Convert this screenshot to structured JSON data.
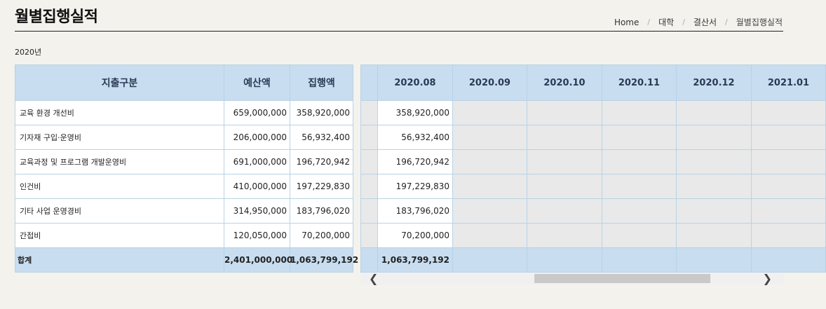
{
  "page": {
    "title": "월별집행실적",
    "breadcrumb": [
      "Home",
      "대학",
      "결산서",
      "월별집행실적"
    ],
    "year": "2020년"
  },
  "fixed_table": {
    "headers": [
      "지출구분",
      "예산액",
      "집행액"
    ],
    "rows": [
      [
        "교육 환경 개선비",
        "659,000,000",
        "358,920,000"
      ],
      [
        "기자재 구입·운영비",
        "206,000,000",
        "56,932,400"
      ],
      [
        "교육과정 및 프로그램 개발운영비",
        "691,000,000",
        "196,720,942"
      ],
      [
        "인건비",
        "410,000,000",
        "197,229,830"
      ],
      [
        "기타 사업 운영경비",
        "314,950,000",
        "183,796,020"
      ],
      [
        "간접비",
        "120,050,000",
        "70,200,000"
      ]
    ],
    "total": [
      "합계",
      "2,401,000,000",
      "1,063,799,192"
    ]
  },
  "monthly_table": {
    "headers": [
      "2020.08",
      "2020.09",
      "2020.10",
      "2020.11",
      "2020.12",
      "2021.01"
    ],
    "rows": [
      [
        "358,920,000",
        "",
        "",
        "",
        "",
        ""
      ],
      [
        "56,932,400",
        "",
        "",
        "",
        "",
        ""
      ],
      [
        "196,720,942",
        "",
        "",
        "",
        "",
        ""
      ],
      [
        "197,229,830",
        "",
        "",
        "",
        "",
        ""
      ],
      [
        "183,796,020",
        "",
        "",
        "",
        "",
        ""
      ],
      [
        "70,200,000",
        "",
        "",
        "",
        "",
        ""
      ]
    ],
    "total": [
      "1,063,799,192",
      "",
      "",
      "",
      "",
      ""
    ]
  },
  "scrollbar": {
    "left_icon": "chevron-left-icon",
    "right_icon": "chevron-right-icon"
  },
  "colors": {
    "header_bg": "#c8ddef",
    "border": "#b9d2e6",
    "empty_cell": "#e9e9e9",
    "page_bg": "#f3f2ec"
  }
}
